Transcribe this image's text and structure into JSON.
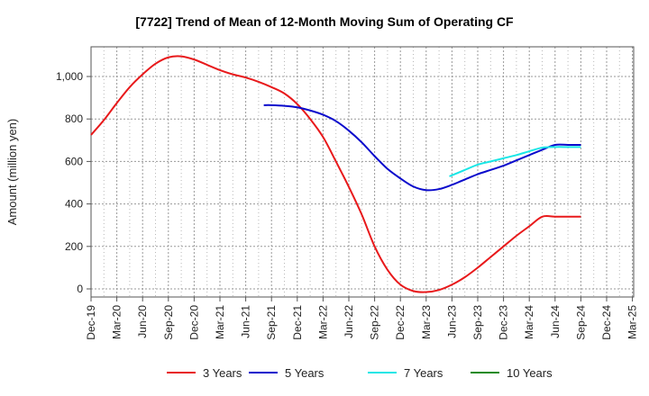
{
  "chart_data": {
    "type": "line",
    "title": "[7722]  Trend of Mean of 12-Month Moving Sum of Operating CF",
    "xlabel": "",
    "ylabel": "Amount (million yen)",
    "ylim": [
      -40,
      1140
    ],
    "yticks": [
      0,
      200,
      400,
      600,
      800,
      1000
    ],
    "ytick_labels": [
      "0",
      "200",
      "400",
      "600",
      "800",
      "1,000"
    ],
    "categories": [
      "Dec-19",
      "Mar-20",
      "Jun-20",
      "Sep-20",
      "Dec-20",
      "Mar-21",
      "Jun-21",
      "Sep-21",
      "Dec-21",
      "Mar-22",
      "Jun-22",
      "Sep-22",
      "Dec-22",
      "Mar-23",
      "Jun-23",
      "Sep-23",
      "Dec-23",
      "Mar-24",
      "Jun-24",
      "Sep-24",
      "Dec-24",
      "Mar-25"
    ],
    "grid": true,
    "legend_position": "bottom",
    "series": [
      {
        "name": "3 Years",
        "color": "#e8191b",
        "x": [
          0,
          0.5,
          1,
          1.5,
          2,
          2.5,
          3,
          3.5,
          4,
          4.5,
          5,
          5.5,
          6,
          6.5,
          7,
          7.5,
          8,
          8.5,
          9,
          9.5,
          10,
          10.5,
          11,
          11.5,
          12,
          12.5,
          13,
          13.5,
          14,
          14.5,
          15,
          15.5,
          16,
          16.5,
          17,
          17.5,
          18,
          18.5,
          19
        ],
        "values": [
          725,
          795,
          875,
          950,
          1010,
          1060,
          1090,
          1095,
          1080,
          1055,
          1030,
          1010,
          995,
          975,
          950,
          920,
          870,
          800,
          715,
          600,
          480,
          350,
          200,
          90,
          20,
          -10,
          -15,
          -5,
          20,
          55,
          100,
          150,
          200,
          250,
          295,
          340,
          340,
          340,
          340
        ]
      },
      {
        "name": "5 Years",
        "color": "#0a0acc",
        "x": [
          6.7,
          7,
          7.5,
          8,
          8.5,
          9,
          9.5,
          10,
          10.5,
          11,
          11.5,
          12,
          12.5,
          13,
          13.5,
          14,
          14.5,
          15,
          15.5,
          16,
          16.5,
          17,
          17.5,
          18,
          18.5,
          19
        ],
        "values": [
          865,
          865,
          862,
          855,
          840,
          820,
          790,
          745,
          690,
          625,
          565,
          520,
          482,
          465,
          470,
          490,
          515,
          540,
          560,
          580,
          605,
          630,
          655,
          678,
          678,
          678
        ]
      },
      {
        "name": "7 Years",
        "color": "#19e6e6",
        "x": [
          13.9,
          14.5,
          15,
          15.5,
          16,
          16.5,
          17,
          17.5,
          18,
          18.5,
          19
        ],
        "values": [
          530,
          560,
          585,
          600,
          615,
          630,
          648,
          665,
          668,
          668,
          668
        ]
      },
      {
        "name": "10 Years",
        "color": "#1a8a1a",
        "x": [],
        "values": []
      }
    ]
  }
}
